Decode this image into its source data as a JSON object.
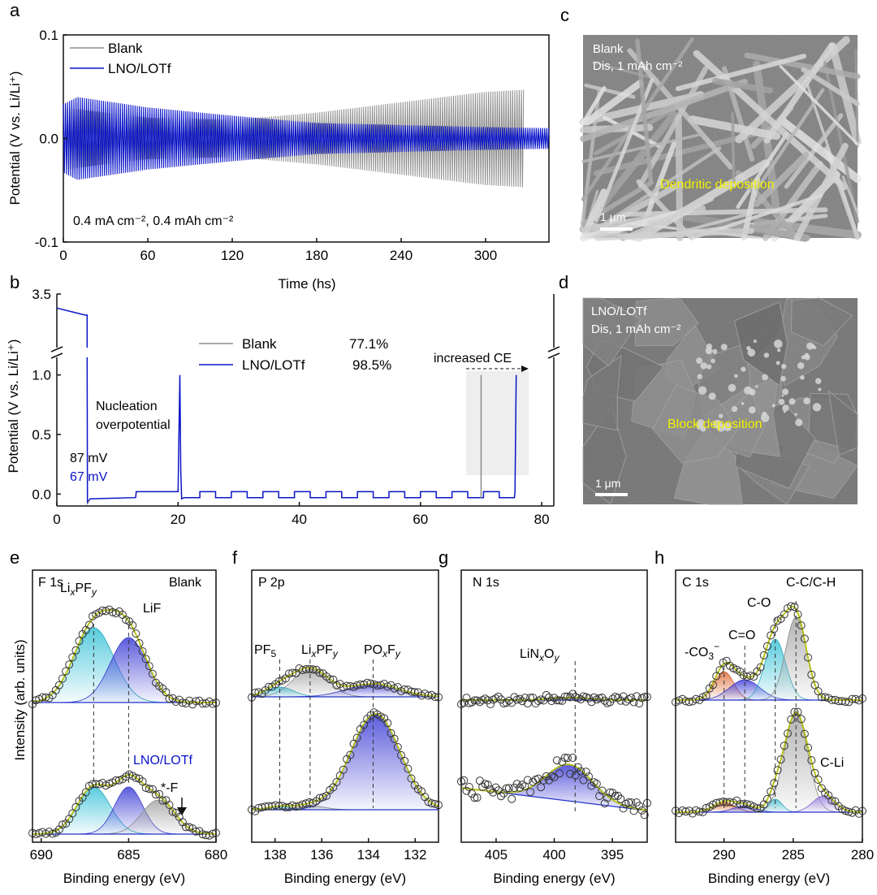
{
  "colors": {
    "blank": "#8c8c8c",
    "lno": "#0a14c8",
    "annot_yellow": "#f2f200",
    "frame": "#111111"
  },
  "chart_data": [
    {
      "panel": "a",
      "type": "line",
      "xlabel": "Time (hs)",
      "ylabel": "Potential (V vs. Li/Li⁺)",
      "xlim": [
        0,
        345
      ],
      "ylim": [
        -0.1,
        0.1
      ],
      "xticks": [
        "0",
        "60",
        "120",
        "180",
        "240",
        "300"
      ],
      "yticks": [
        "-0.1",
        "0.0",
        "0.1"
      ],
      "annotation": "0.4 mA cm⁻², 0.4 mAh cm⁻²",
      "series": [
        {
          "name": "Blank",
          "x_range": [
            0,
            327
          ],
          "amplitude_envelope": [
            [
              0,
              0.03
            ],
            [
              60,
              0.02
            ],
            [
              120,
              0.018
            ],
            [
              180,
              0.025
            ],
            [
              240,
              0.035
            ],
            [
              300,
              0.045
            ],
            [
              327,
              0.047
            ]
          ]
        },
        {
          "name": "LNO/LOTf",
          "x_range": [
            0,
            345
          ],
          "amplitude_envelope": [
            [
              0,
              0.033
            ],
            [
              10,
              0.04
            ],
            [
              60,
              0.03
            ],
            [
              120,
              0.022
            ],
            [
              180,
              0.015
            ],
            [
              240,
              0.013
            ],
            [
              300,
              0.011
            ],
            [
              345,
              0.01
            ]
          ]
        }
      ]
    },
    {
      "panel": "b",
      "type": "line",
      "ylabel": "Potential (V vs. Li/Li⁺)",
      "xlim": [
        0,
        82
      ],
      "ylim": [
        -0.1,
        3.5
      ],
      "y_break": [
        1.1,
        3.2
      ],
      "xticks": [
        "0",
        "20",
        "40",
        "60",
        "80"
      ],
      "yticks": [
        "0.0",
        "0.5",
        "1.0",
        "3.5"
      ],
      "legend": [
        {
          "name": "Blank",
          "ce": "77.1%"
        },
        {
          "name": "LNO/LOTf",
          "ce": "98.5%"
        }
      ],
      "annotations": {
        "nucleation": [
          "Nucleation",
          "overpotential"
        ],
        "blank_mv": "87 mV",
        "lno_mv": "67 mV",
        "increased_ce": "increased CE"
      },
      "series": [
        {
          "name": "Blank",
          "final_spike_x": 70,
          "nucleation_overpotential_v": -0.087
        },
        {
          "name": "LNO/LOTf",
          "final_spike_x": 75.8,
          "nucleation_overpotential_v": -0.067,
          "mid_spike_x": 20.3,
          "initial_plateau_v": 3.2,
          "initial_plateau_end_x": 5
        }
      ]
    },
    {
      "panel": "e",
      "type": "xps",
      "title": "F 1s",
      "corner_label": "Blank",
      "bottom_label": "LNO/LOTf",
      "xlabel": "Binding energy (eV)",
      "xlim": [
        690.5,
        680
      ],
      "xticks": [
        "690",
        "685",
        "680"
      ],
      "components": [
        "LixPFy",
        "LiF",
        "*-F"
      ],
      "peak_centers_ev": [
        687,
        685,
        683.3
      ]
    },
    {
      "panel": "f",
      "type": "xps",
      "title": "P 2p",
      "xlabel": "Binding energy (eV)",
      "xlim": [
        139,
        131
      ],
      "xticks": [
        "138",
        "136",
        "134",
        "132"
      ],
      "components": [
        "PF5",
        "LixPFy",
        "POxFy"
      ],
      "peak_centers_ev": [
        137.8,
        136.5,
        133.8
      ]
    },
    {
      "panel": "g",
      "type": "xps",
      "title": "N 1s",
      "xlabel": "Binding energy (eV)",
      "xlim": [
        408,
        392
      ],
      "xticks": [
        "405",
        "400",
        "395"
      ],
      "components": [
        "LiNxOy"
      ],
      "peak_centers_ev": [
        398.5
      ]
    },
    {
      "panel": "h",
      "type": "xps",
      "title": "C 1s",
      "xlabel": "Binding energy (eV)",
      "xlim": [
        293.5,
        280
      ],
      "xticks": [
        "290",
        "285",
        "280"
      ],
      "components": [
        "-CO3-",
        "C=O",
        "C-O",
        "C-C/C-H",
        "C-Li"
      ],
      "peak_centers_ev": [
        290,
        288.5,
        286.3,
        284.8,
        282.8
      ]
    }
  ],
  "ylabel_efgh": "Intensity (arb. units)",
  "sem": {
    "c": {
      "label": "c",
      "line1": "Blank",
      "line2": "Dis, 1 mAh cm⁻²",
      "annotation": "Dendritic deposition",
      "scale": "1 μm"
    },
    "d": {
      "label": "d",
      "line1": "LNO/LOTf",
      "line2": "Dis, 1 mAh cm⁻²",
      "annotation": "Block deposition",
      "scale": "1 μm"
    }
  },
  "panel_letters": [
    "a",
    "b",
    "c",
    "d",
    "e",
    "f",
    "g",
    "h"
  ]
}
